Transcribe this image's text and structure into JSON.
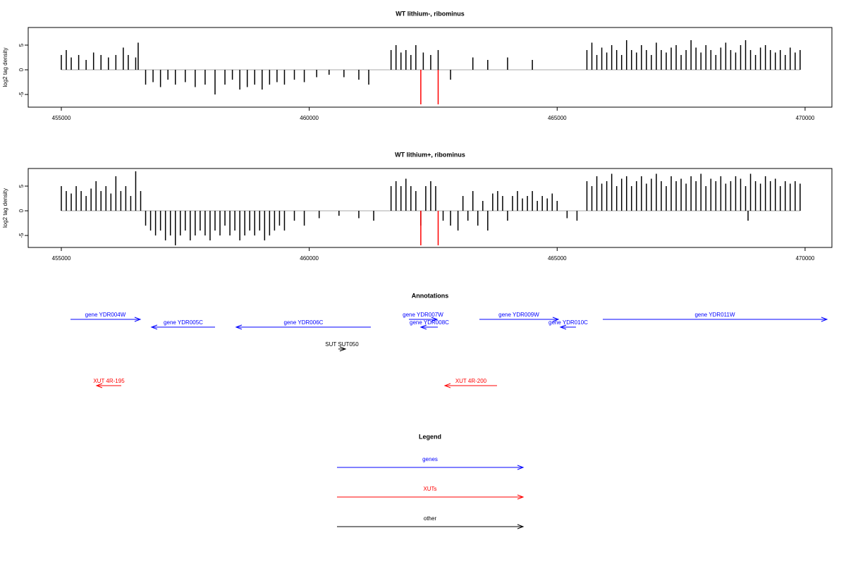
{
  "chart_data": [
    {
      "type": "bar",
      "title": "WT lithium-, ribominus",
      "y_label": "log2 tag density",
      "xlim": [
        454332,
        470541
      ],
      "ylim": [
        -7.57,
        8.57
      ],
      "xticks": [
        455000,
        460000,
        465000,
        470000
      ],
      "yticks": [
        -5,
        0,
        5
      ],
      "series": [
        {
          "color": "#000000",
          "x": [
            455000,
            455100,
            455200,
            455350,
            455500,
            455650,
            455800,
            455950,
            456100,
            456250,
            456350,
            456500,
            456550,
            456700,
            456850,
            457000,
            457150,
            457300,
            457500,
            457700,
            457900,
            458100,
            458300,
            458450,
            458600,
            458750,
            458900,
            459050,
            459200,
            459350,
            459500,
            459700,
            459900,
            460150,
            460400,
            460700,
            461000,
            461200,
            461650,
            461750,
            461850,
            461950,
            462050,
            462150,
            462300,
            462450,
            462600,
            462850,
            463300,
            463600,
            464000,
            464500,
            465600,
            465700,
            465800,
            465900,
            466000,
            466100,
            466200,
            466300,
            466400,
            466500,
            466600,
            466700,
            466800,
            466900,
            467000,
            467100,
            467200,
            467300,
            467400,
            467500,
            467600,
            467700,
            467800,
            467900,
            468000,
            468100,
            468200,
            468300,
            468400,
            468500,
            468600,
            468700,
            468800,
            468900,
            469000,
            469100,
            469200,
            469300,
            469400,
            469500,
            469600,
            469700,
            469800,
            469900
          ],
          "values": [
            3,
            4,
            2.5,
            3,
            2,
            3.5,
            3,
            2.5,
            3,
            4.5,
            3,
            2.5,
            5.5,
            -3,
            -2.5,
            -3.5,
            -2,
            -3,
            -2.5,
            -3.5,
            -3,
            -5,
            -3,
            -2,
            -4,
            -3.5,
            -3,
            -4,
            -3,
            -2.5,
            -3,
            -2,
            -2.5,
            -1.5,
            -1,
            -1.5,
            -2,
            -3,
            4,
            5,
            3.5,
            4,
            3,
            5,
            3.5,
            3,
            4,
            -2,
            2.5,
            2,
            2.5,
            2,
            4,
            5.5,
            3,
            4.5,
            3.5,
            5,
            4,
            3,
            6,
            4,
            3.5,
            5,
            4,
            3,
            5.5,
            4,
            3.5,
            4.5,
            5,
            3,
            4,
            6,
            4.5,
            3.5,
            5,
            4,
            3,
            4.5,
            5.5,
            4,
            3.5,
            5,
            6,
            4,
            3,
            4.5,
            5,
            4,
            3.5,
            4,
            3,
            4.5,
            3.5,
            4
          ]
        },
        {
          "color": "#ff0000",
          "x": [
            462250,
            462600
          ],
          "values": [
            -7,
            -7
          ]
        }
      ]
    },
    {
      "type": "bar",
      "title": "WT lithium+, ribominus",
      "y_label": "log2 tag density",
      "xlim": [
        454332,
        470541
      ],
      "ylim": [
        -7.43,
        8.57
      ],
      "xticks": [
        455000,
        460000,
        465000,
        470000
      ],
      "yticks": [
        -5,
        0,
        5
      ],
      "series": [
        {
          "color": "#000000",
          "x": [
            455000,
            455100,
            455200,
            455300,
            455400,
            455500,
            455600,
            455700,
            455800,
            455900,
            456000,
            456100,
            456200,
            456300,
            456400,
            456500,
            456600,
            456700,
            456800,
            456900,
            457000,
            457100,
            457200,
            457300,
            457400,
            457500,
            457600,
            457700,
            457800,
            457900,
            458000,
            458100,
            458200,
            458300,
            458400,
            458500,
            458600,
            458700,
            458800,
            458900,
            459000,
            459100,
            459200,
            459300,
            459400,
            459500,
            459700,
            459900,
            460200,
            460600,
            461000,
            461300,
            461650,
            461750,
            461850,
            461950,
            462050,
            462150,
            462250,
            462350,
            462450,
            462550,
            462700,
            462850,
            463000,
            463100,
            463200,
            463300,
            463400,
            463500,
            463600,
            463700,
            463800,
            463900,
            464000,
            464100,
            464200,
            464300,
            464400,
            464500,
            464600,
            464700,
            464800,
            464900,
            465000,
            465200,
            465400,
            465600,
            465700,
            465800,
            465900,
            466000,
            466100,
            466200,
            466300,
            466400,
            466500,
            466600,
            466700,
            466800,
            466900,
            467000,
            467100,
            467200,
            467300,
            467400,
            467500,
            467600,
            467700,
            467800,
            467900,
            468000,
            468100,
            468200,
            468300,
            468400,
            468500,
            468600,
            468700,
            468800,
            468900,
            469000,
            469100,
            469200,
            469300,
            469400,
            469500,
            469600,
            469700,
            469800,
            469900,
            468850
          ],
          "values": [
            5,
            4,
            3.5,
            5,
            4,
            3,
            4.5,
            6,
            4,
            5,
            3.5,
            7,
            4,
            5,
            3,
            8,
            4,
            -3,
            -4,
            -5,
            -4,
            -6,
            -5,
            -7,
            -5,
            -4,
            -6,
            -5,
            -4,
            -5,
            -6,
            -4,
            -5,
            -3,
            -5,
            -4,
            -6,
            -5,
            -4,
            -5,
            -4,
            -6,
            -5,
            -4,
            -3,
            -4,
            -2,
            -3,
            -1.5,
            -1,
            -1.5,
            -2,
            5,
            6,
            5,
            6.5,
            5,
            4,
            -3,
            5,
            6,
            5,
            -2,
            -3,
            -4,
            3,
            -2,
            4,
            -3,
            2,
            -4,
            3.5,
            4,
            3,
            -2,
            3,
            4,
            2.5,
            3,
            4,
            2,
            3,
            2.5,
            3.5,
            2,
            -1.5,
            -2,
            6,
            5,
            7,
            5.5,
            6,
            7.5,
            5,
            6.5,
            7,
            5,
            6,
            7,
            5.5,
            6.5,
            7.5,
            6,
            5,
            7,
            6,
            6.5,
            5.5,
            7,
            6,
            7.5,
            5,
            6.5,
            6,
            7,
            5.5,
            6,
            7,
            6.5,
            5,
            7.5,
            6,
            5.5,
            7,
            6,
            6.5,
            5,
            6,
            5.5,
            6,
            5.5,
            -2
          ]
        },
        {
          "color": "#ff0000",
          "x": [
            462250,
            462600
          ],
          "values": [
            -7,
            -7
          ]
        }
      ]
    }
  ],
  "annotations": {
    "title": "Annotations",
    "items": [
      {
        "label": "gene YDR004W",
        "start": 455185,
        "end": 456592,
        "color": "#0000ff"
      },
      {
        "label": "gene YDR005C",
        "start": 458100,
        "end": 456820,
        "color": "#0000ff"
      },
      {
        "label": "gene YDR006C",
        "start": 461242,
        "end": 458526,
        "color": "#0000ff"
      },
      {
        "label": "gene YDR007W",
        "start": 462010,
        "end": 462578,
        "color": "#0000ff"
      },
      {
        "label": "gene YDR008C",
        "start": 462593,
        "end": 462251,
        "color": "#0000ff"
      },
      {
        "label": "gene YDR009W",
        "start": 463431,
        "end": 465024,
        "color": "#0000ff"
      },
      {
        "label": "gene YDR010C",
        "start": 465379,
        "end": 465067,
        "color": "#0000ff"
      },
      {
        "label": "gene YDR011W",
        "start": 465920,
        "end": 470441,
        "color": "#0000ff"
      },
      {
        "label": "SUT SUT050",
        "start": 460588,
        "end": 460730,
        "color": "#000000"
      },
      {
        "label": "XUT 4R-195",
        "start": 456209,
        "end": 455711,
        "color": "#ff0000"
      },
      {
        "label": "XUT 4R-200",
        "start": 463787,
        "end": 462735,
        "color": "#ff0000"
      }
    ]
  },
  "legend": {
    "title": "Legend",
    "items": [
      {
        "label": "genes",
        "color": "#0000ff"
      },
      {
        "label": "XUTs",
        "color": "#ff0000"
      },
      {
        "label": "other",
        "color": "#000000"
      }
    ]
  }
}
